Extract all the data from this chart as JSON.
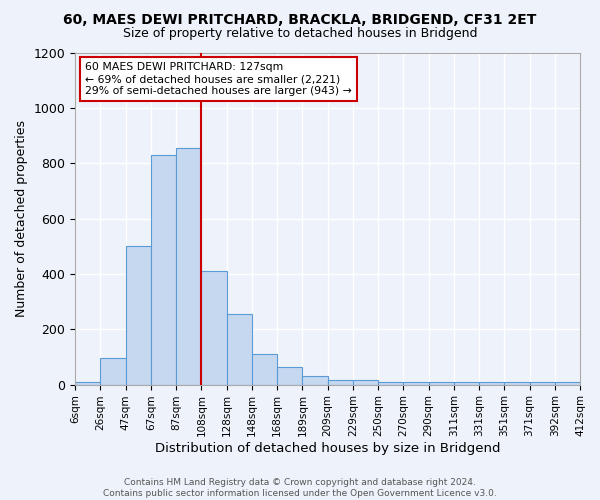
{
  "title": "60, MAES DEWI PRITCHARD, BRACKLA, BRIDGEND, CF31 2ET",
  "subtitle": "Size of property relative to detached houses in Bridgend",
  "xlabel": "Distribution of detached houses by size in Bridgend",
  "ylabel": "Number of detached properties",
  "bin_labels": [
    "6sqm",
    "26sqm",
    "47sqm",
    "67sqm",
    "87sqm",
    "108sqm",
    "128sqm",
    "148sqm",
    "168sqm",
    "189sqm",
    "209sqm",
    "229sqm",
    "250sqm",
    "270sqm",
    "290sqm",
    "311sqm",
    "331sqm",
    "351sqm",
    "371sqm",
    "392sqm",
    "412sqm"
  ],
  "bar_values": [
    10,
    95,
    500,
    830,
    855,
    410,
    255,
    110,
    65,
    30,
    15,
    15,
    10,
    10,
    10,
    10,
    10,
    10,
    10,
    10
  ],
  "n_bins": 20,
  "property_sqm": 127,
  "property_bin_index": 5,
  "annotation_text": "60 MAES DEWI PRITCHARD: 127sqm\n← 69% of detached houses are smaller (2,221)\n29% of semi-detached houses are larger (943) →",
  "bar_color": "#c5d8f0",
  "bar_edge_color": "#5b9bd5",
  "line_color": "#cc0000",
  "background_color": "#eef2fa",
  "grid_color": "#ffffff",
  "annotation_box_color": "#ffffff",
  "annotation_box_edge": "#cc0000",
  "footer_text": "Contains HM Land Registry data © Crown copyright and database right 2024.\nContains public sector information licensed under the Open Government Licence v3.0.",
  "ylim": [
    0,
    1200
  ],
  "yticks": [
    0,
    200,
    400,
    600,
    800,
    1000,
    1200
  ],
  "title_fontsize": 10,
  "subtitle_fontsize": 9
}
